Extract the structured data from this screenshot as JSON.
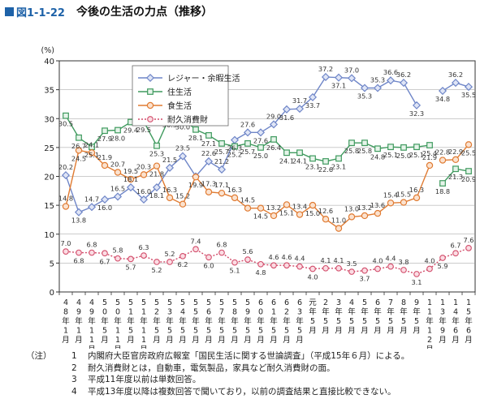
{
  "figure": {
    "number": "図1-1-22",
    "title": "今後の生活の力点（推移）"
  },
  "notes": {
    "label": "（注）",
    "items": [
      "内閣府大臣官房政府広報室「国民生活に関する世論調査」（平成15年６月）による。",
      "耐久消費財とは，自動車，電気製品，家具など耐久消費財の面。",
      "平成11年度以前は単数回答。",
      "平成13年度以降は複数回答で聞いており，以前の調査結果と直接比較できない。"
    ]
  },
  "chart_data": {
    "type": "line",
    "y_unit": "(%)",
    "ylim": [
      0,
      40
    ],
    "yticks": [
      0,
      5,
      10,
      15,
      20,
      25,
      30,
      35,
      40
    ],
    "grid": true,
    "legend_position": "top-right",
    "categories": [
      "48年1月",
      "49年1月",
      "49年11月",
      "50年5月",
      "50年11月",
      "51年5月",
      "51年11月",
      "52年5月",
      "53年5月",
      "54年5月",
      "55年5月",
      "56年5月",
      "57年5月",
      "58年5月",
      "59年5月",
      "60年5月",
      "61年5月",
      "62年5月",
      "63年5月",
      "元年5月",
      "2年5月",
      "3年5月",
      "4年5月",
      "5年5月",
      "6年5月",
      "7年5月",
      "8年5月",
      "9年5月",
      "11年12月",
      "13年9月",
      "14年6月",
      "15年6月"
    ],
    "series": [
      {
        "name": "レジャー・余暇生活",
        "color": "#6f86c8",
        "marker": "diamond",
        "line": "solid",
        "segments": [
          [
            0,
            28
          ],
          [
            29,
            31
          ]
        ],
        "values": [
          20.2,
          13.8,
          14.7,
          16.0,
          16.5,
          18.1,
          16.0,
          18.1,
          21.5,
          23.5,
          20.0,
          22.6,
          21.2,
          26.3,
          27.6,
          27.6,
          29.0,
          31.6,
          31.7,
          33.7,
          37.2,
          37.1,
          37.0,
          35.3,
          35.3,
          36.6,
          36.2,
          32.3,
          null,
          34.8,
          36.2,
          35.5
        ]
      },
      {
        "name": "住生活",
        "color": "#3f9a5e",
        "marker": "square",
        "line": "solid",
        "segments": [
          [
            0,
            28
          ],
          [
            29,
            31
          ]
        ],
        "values": [
          30.5,
          26.7,
          25.1,
          27.9,
          28.0,
          29.4,
          29.5,
          25.3,
          30.3,
          30.0,
          28.1,
          27.1,
          25.7,
          25.2,
          25.7,
          25.0,
          26.4,
          24.1,
          24.1,
          23.1,
          22.6,
          23.1,
          25.8,
          25.8,
          24.8,
          25.1,
          25.0,
          25.1,
          25.4,
          18.8,
          21.3,
          20.9
        ]
      },
      {
        "name": "食生活",
        "color": "#e07b32",
        "marker": "circle",
        "line": "solid",
        "segments": [
          [
            0,
            28
          ],
          [
            29,
            31
          ]
        ],
        "values": [
          14.8,
          24.5,
          24.1,
          21.9,
          20.7,
          19.5,
          20.3,
          21.8,
          16.3,
          15.2,
          19.9,
          17.3,
          17.1,
          16.3,
          14.5,
          14.5,
          13.2,
          15.1,
          13.4,
          15.0,
          12.6,
          11.0,
          13.0,
          13.2,
          13.6,
          15.4,
          15.5,
          16.3,
          21.9,
          22.8,
          22.9,
          25.5
        ]
      },
      {
        "name": "耐久消費財",
        "color": "#d24c6a",
        "marker": "circle",
        "line": "dotted",
        "segments": [
          [
            0,
            31
          ]
        ],
        "values": [
          7.0,
          6.8,
          6.8,
          6.7,
          5.8,
          5.7,
          6.3,
          5.2,
          5.2,
          6.2,
          7.4,
          6.0,
          6.8,
          5.1,
          5.6,
          4.8,
          4.6,
          4.6,
          4.4,
          4.0,
          4.1,
          4.1,
          3.5,
          3.7,
          4.0,
          4.4,
          3.8,
          3.1,
          4.0,
          5.9,
          6.7,
          7.6
        ]
      }
    ],
    "data_labels": [
      [
        "20.2",
        "13.8",
        "14.7",
        "16.0",
        "16.5",
        "18.1",
        "16.0",
        "18.1",
        "21.5",
        "23.5",
        "",
        "22.6",
        "21.2",
        "26.3",
        "27.6",
        "27.6",
        "29.0",
        "31.6",
        "31.7",
        "33.7",
        "37.2",
        "37.1",
        "37.0",
        "35.3",
        "35.3",
        "36.6",
        "36.2",
        "32.3",
        "",
        "34.8",
        "36.2",
        "35.5"
      ],
      [
        "30.5",
        "26.7",
        "25.1",
        "27.9",
        "28.0",
        "29.4",
        "29.5",
        "25.3",
        "30.3",
        "30.0",
        "28.1",
        "27.1",
        "25.7",
        "25.2",
        "25.7",
        "25.0",
        "26.4",
        "24.1",
        "24.1",
        "23.1",
        "22.6",
        "23.1",
        "25.8",
        "25.8",
        "24.8",
        "25.1",
        "25.0",
        "25.1",
        "25.4",
        "18.8",
        "21.3",
        "20.9"
      ],
      [
        "14.8",
        "24.5",
        "24.1",
        "21.9",
        "20.7",
        "19.5",
        "20.3",
        "21.8",
        "16.3",
        "15.2",
        "19.9",
        "17.3",
        "17.1",
        "16.3",
        "14.5",
        "14.5",
        "13.2",
        "15.1",
        "13.4",
        "15.0",
        "12.6",
        "11.0",
        "13.0",
        "13.2",
        "13.6",
        "15.4",
        "15.5",
        "16.3",
        "21.9",
        "22.8",
        "22.9",
        "25.5"
      ],
      [
        "7.0",
        "6.8",
        "6.8",
        "6.7",
        "5.8",
        "5.7",
        "6.3",
        "5.2",
        "5.2",
        "6.2",
        "7.4",
        "6.0",
        "6.8",
        "5.1",
        "5.6",
        "4.8",
        "4.6",
        "4.6",
        "4.4",
        "4.0",
        "4.1",
        "4.1",
        "3.5",
        "3.7",
        "4.0",
        "4.4",
        "3.8",
        "3.1",
        "4.0",
        "5.9",
        "6.7",
        "7.6"
      ]
    ]
  }
}
